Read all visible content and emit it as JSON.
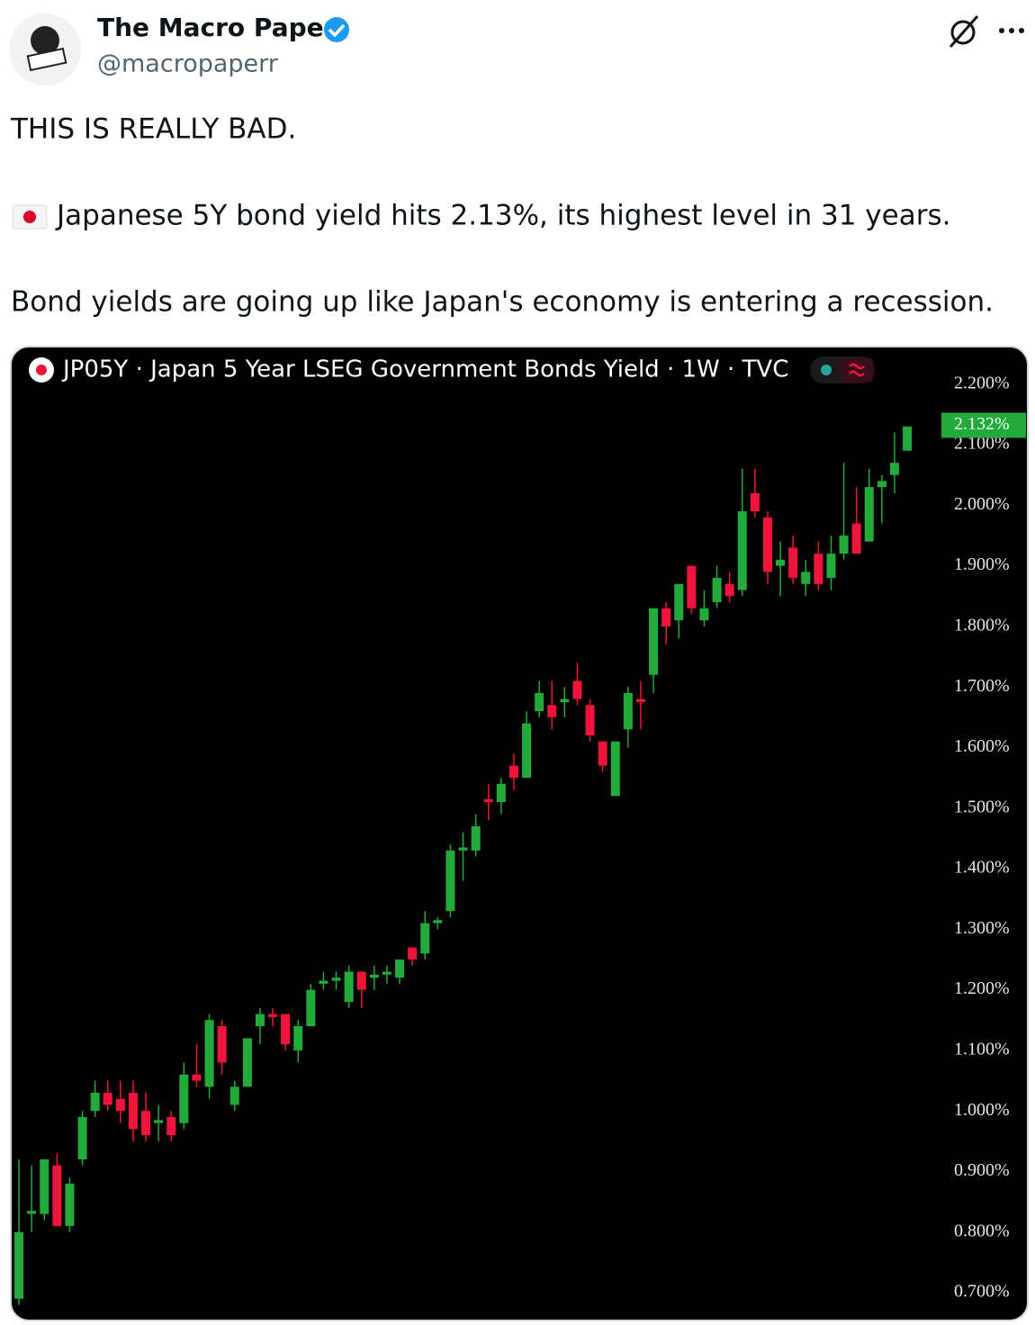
{
  "tweet": {
    "name": "The Macro Paper",
    "handle": "@macropaperr",
    "paragraphs": [
      "THIS IS REALLY BAD.",
      "Japanese 5Y bond yield hits 2.13%, its highest level in 31 years.",
      "Bond yields are going up like Japan's economy is entering a recession."
    ]
  },
  "chart_data": {
    "type": "candlestick",
    "title": "JP05Y · Japan 5 Year LSEG Government Bonds Yield · 1W · TVC",
    "up_color": "#22ab3a",
    "down_color": "#f0143c",
    "categories": [
      null,
      null,
      null,
      null,
      null,
      null,
      null,
      null,
      null,
      null,
      null,
      null,
      null,
      null,
      null,
      null,
      null,
      null,
      null,
      null,
      null,
      null,
      null,
      null,
      null,
      null,
      null,
      null,
      null,
      null,
      null,
      null,
      null,
      null,
      null,
      null,
      null,
      null,
      null,
      null,
      null,
      null,
      null,
      null,
      null,
      null,
      null,
      null,
      null,
      null,
      null,
      null,
      null,
      null,
      null,
      null,
      null,
      null,
      null,
      null,
      null,
      null,
      null,
      null,
      null,
      null,
      null,
      null,
      null,
      null,
      null
    ],
    "open": [
      0.69,
      0.83,
      0.83,
      0.91,
      0.81,
      0.92,
      1.0,
      1.03,
      1.02,
      1.03,
      1.0,
      0.98,
      0.99,
      0.98,
      1.06,
      1.04,
      1.14,
      1.01,
      1.04,
      1.14,
      1.16,
      1.16,
      1.1,
      1.14,
      1.21,
      1.215,
      1.18,
      1.23,
      1.22,
      1.225,
      1.22,
      1.27,
      1.26,
      1.31,
      1.33,
      1.43,
      1.43,
      1.515,
      1.51,
      1.57,
      1.55,
      1.66,
      1.67,
      1.675,
      1.71,
      1.67,
      1.61,
      1.52,
      1.63,
      1.68,
      1.72,
      1.83,
      1.81,
      1.9,
      1.81,
      1.84,
      1.87,
      1.86,
      2.02,
      1.98,
      1.9,
      1.93,
      1.87,
      1.92,
      1.88,
      1.92,
      1.97,
      1.94,
      2.03,
      2.05,
      2.09
    ],
    "high": [
      0.92,
      0.91,
      0.92,
      0.93,
      0.89,
      1.0,
      1.05,
      1.05,
      1.05,
      1.05,
      1.03,
      1.01,
      1.0,
      1.08,
      1.11,
      1.16,
      1.15,
      1.05,
      1.12,
      1.17,
      1.17,
      1.16,
      1.15,
      1.21,
      1.23,
      1.23,
      1.24,
      1.23,
      1.24,
      1.24,
      1.25,
      1.27,
      1.33,
      1.32,
      1.44,
      1.46,
      1.49,
      1.54,
      1.55,
      1.59,
      1.66,
      1.71,
      1.71,
      1.7,
      1.74,
      1.68,
      1.61,
      1.61,
      1.7,
      1.71,
      1.83,
      1.84,
      1.87,
      1.9,
      1.86,
      1.9,
      1.89,
      2.06,
      2.06,
      1.99,
      1.94,
      1.95,
      1.91,
      1.94,
      1.95,
      2.07,
      2.03,
      2.06,
      2.05,
      2.12,
      2.13
    ],
    "low": [
      0.68,
      0.8,
      0.82,
      0.81,
      0.8,
      0.91,
      0.99,
      1.0,
      0.98,
      0.95,
      0.95,
      0.95,
      0.95,
      0.97,
      1.04,
      1.02,
      1.06,
      1.0,
      1.04,
      1.11,
      1.14,
      1.1,
      1.08,
      1.14,
      1.2,
      1.2,
      1.17,
      1.17,
      1.2,
      1.21,
      1.21,
      1.24,
      1.25,
      1.3,
      1.32,
      1.38,
      1.42,
      1.48,
      1.49,
      1.53,
      1.55,
      1.65,
      1.63,
      1.65,
      1.67,
      1.61,
      1.56,
      1.52,
      1.6,
      1.63,
      1.69,
      1.77,
      1.78,
      1.82,
      1.8,
      1.83,
      1.84,
      1.85,
      1.98,
      1.87,
      1.85,
      1.87,
      1.85,
      1.86,
      1.86,
      1.91,
      1.92,
      1.94,
      1.97,
      2.02,
      2.09
    ],
    "close": [
      0.8,
      0.835,
      0.92,
      0.81,
      0.88,
      0.99,
      1.03,
      1.01,
      1.0,
      0.97,
      0.96,
      0.985,
      0.96,
      1.06,
      1.05,
      1.15,
      1.08,
      1.04,
      1.12,
      1.16,
      1.155,
      1.11,
      1.14,
      1.2,
      1.215,
      1.22,
      1.23,
      1.2,
      1.225,
      1.23,
      1.25,
      1.25,
      1.31,
      1.315,
      1.43,
      1.435,
      1.47,
      1.51,
      1.54,
      1.55,
      1.64,
      1.69,
      1.65,
      1.68,
      1.68,
      1.62,
      1.57,
      1.61,
      1.69,
      1.675,
      1.83,
      1.8,
      1.87,
      1.83,
      1.83,
      1.88,
      1.85,
      1.99,
      1.99,
      1.89,
      1.91,
      1.88,
      1.89,
      1.87,
      1.92,
      1.95,
      1.92,
      2.03,
      2.04,
      2.07,
      2.13
    ],
    "ylim": [
      0.657,
      2.262
    ],
    "yticks": [
      {
        "value": 0.7,
        "label": "0.700%"
      },
      {
        "value": 0.8,
        "label": "0.800%"
      },
      {
        "value": 0.9,
        "label": "0.900%"
      },
      {
        "value": 1.0,
        "label": "1.000%"
      },
      {
        "value": 1.1,
        "label": "1.100%"
      },
      {
        "value": 1.2,
        "label": "1.200%"
      },
      {
        "value": 1.3,
        "label": "1.300%"
      },
      {
        "value": 1.4,
        "label": "1.400%"
      },
      {
        "value": 1.5,
        "label": "1.500%"
      },
      {
        "value": 1.6,
        "label": "1.600%"
      },
      {
        "value": 1.7,
        "label": "1.700%"
      },
      {
        "value": 1.8,
        "label": "1.800%"
      },
      {
        "value": 1.9,
        "label": "1.900%"
      },
      {
        "value": 2.0,
        "label": "2.000%"
      },
      {
        "value": 2.1,
        "label": "2.100%"
      },
      {
        "value": 2.2,
        "label": "2.200%"
      }
    ],
    "last_price": {
      "value": 2.132,
      "label": "2.132%"
    }
  }
}
